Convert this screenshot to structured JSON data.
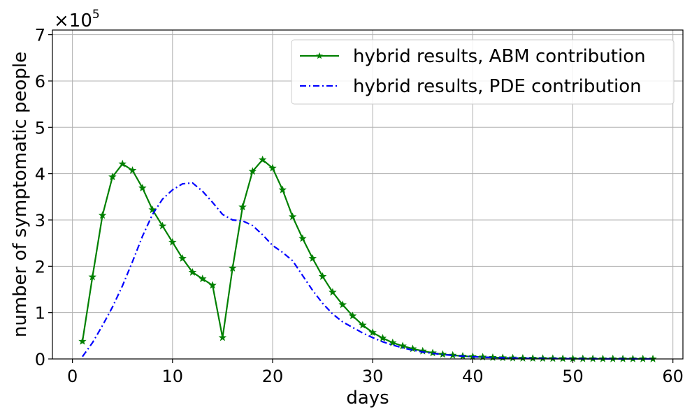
{
  "chart_data": {
    "type": "line",
    "title": "",
    "xlabel": "days",
    "ylabel": "number of symptomatic people",
    "y_scale_label": "×10",
    "y_scale_exponent": "5",
    "xlim": [
      -2,
      61
    ],
    "ylim": [
      0,
      7.1
    ],
    "x_ticks": [
      0,
      10,
      20,
      30,
      40,
      50,
      60
    ],
    "y_ticks": [
      0,
      1,
      2,
      3,
      4,
      5,
      6,
      7
    ],
    "grid": true,
    "legend_position": "top-right",
    "series": [
      {
        "name": "hybrid results, ABM contribution",
        "color": "#008000",
        "style": "solid",
        "marker": "star",
        "x": [
          1,
          2,
          3,
          4,
          5,
          6,
          7,
          8,
          9,
          10,
          11,
          12,
          13,
          14,
          15,
          16,
          17,
          18,
          19,
          20,
          21,
          22,
          23,
          24,
          25,
          26,
          27,
          28,
          29,
          30,
          31,
          32,
          33,
          34,
          35,
          36,
          37,
          38,
          39,
          40,
          41,
          42,
          43,
          44,
          45,
          46,
          47,
          48,
          49,
          50,
          51,
          52,
          53,
          54,
          55,
          56,
          57,
          58
        ],
        "values": [
          0.38,
          1.77,
          3.1,
          3.93,
          4.21,
          4.07,
          3.69,
          3.22,
          2.87,
          2.52,
          2.17,
          1.87,
          1.73,
          1.59,
          0.46,
          1.96,
          3.28,
          4.05,
          4.3,
          4.12,
          3.65,
          3.07,
          2.6,
          2.17,
          1.78,
          1.44,
          1.17,
          0.93,
          0.73,
          0.57,
          0.45,
          0.35,
          0.28,
          0.22,
          0.17,
          0.13,
          0.1,
          0.08,
          0.06,
          0.05,
          0.04,
          0.03,
          0.025,
          0.02,
          0.016,
          0.013,
          0.011,
          0.009,
          0.007,
          0.006,
          0.005,
          0.004,
          0.003,
          0.003,
          0.002,
          0.002,
          0.002,
          0.001
        ]
      },
      {
        "name": "hybrid results, PDE contribution",
        "color": "#0000ff",
        "style": "dashdot",
        "marker": "none",
        "x": [
          1,
          2,
          3,
          4,
          5,
          6,
          7,
          8,
          9,
          10,
          11,
          12,
          13,
          14,
          15,
          16,
          17,
          18,
          19,
          20,
          21,
          22,
          23,
          24,
          25,
          26,
          27,
          28,
          29,
          30,
          31,
          32,
          33,
          34,
          35,
          36,
          37,
          38,
          39,
          40,
          41,
          42,
          43,
          44,
          45,
          46,
          47,
          48,
          49,
          50,
          51,
          52,
          53,
          54,
          55,
          56,
          57,
          58
        ],
        "values": [
          0.05,
          0.35,
          0.72,
          1.12,
          1.58,
          2.1,
          2.65,
          3.12,
          3.45,
          3.65,
          3.78,
          3.8,
          3.62,
          3.38,
          3.12,
          3.0,
          2.98,
          2.88,
          2.68,
          2.45,
          2.3,
          2.12,
          1.8,
          1.48,
          1.2,
          0.97,
          0.8,
          0.68,
          0.56,
          0.46,
          0.37,
          0.3,
          0.24,
          0.19,
          0.15,
          0.12,
          0.095,
          0.075,
          0.06,
          0.048,
          0.038,
          0.03,
          0.024,
          0.019,
          0.015,
          0.012,
          0.01,
          0.008,
          0.006,
          0.005,
          0.004,
          0.003,
          0.0025,
          0.002,
          0.0015,
          0.0012,
          0.001,
          0.001
        ]
      }
    ]
  }
}
